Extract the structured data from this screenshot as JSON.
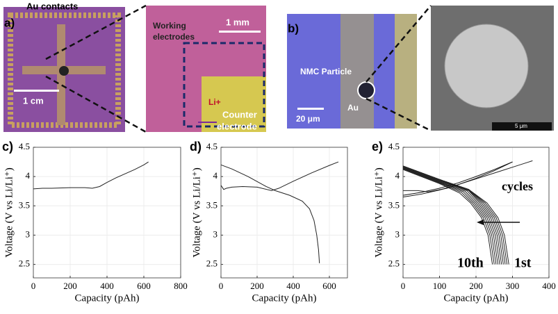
{
  "images": {
    "a": {
      "panel": "a)",
      "contacts": "Au contacts",
      "scale_left": "1 cm",
      "working": [
        "Working",
        "electrodes"
      ],
      "scale_right": "1 mm",
      "li": "Li+",
      "counter": [
        "Counter",
        "electrode"
      ]
    },
    "b": {
      "panel": "b)",
      "particle": "NMC Particle",
      "scale_left": "20 μm",
      "au": "Au",
      "scale_right": "5 μm"
    }
  },
  "chart_data": [
    {
      "type": "line",
      "panel": "c)",
      "x_label": "Capacity (pAh)",
      "y_label": "Voltage (V vs Li/Li⁺)",
      "xlim": [
        0,
        800
      ],
      "xticks": [
        0,
        200,
        400,
        600,
        800
      ],
      "ylim": [
        2.27,
        4.5
      ],
      "yticks": [
        2.5,
        3,
        3.5,
        4,
        4.5
      ],
      "grid": true,
      "series": [
        {
          "color": "#222",
          "x": [
            0,
            50,
            100,
            200,
            280,
            320,
            360,
            400,
            450,
            500,
            550,
            600,
            625
          ],
          "values": [
            3.79,
            3.8,
            3.8,
            3.81,
            3.81,
            3.8,
            3.83,
            3.9,
            3.98,
            4.05,
            4.12,
            4.2,
            4.25
          ]
        }
      ]
    },
    {
      "type": "line",
      "panel": "d)",
      "x_label": "Capacity (pAh)",
      "y_label": "Voltage (V vs Li/Li⁺)",
      "xlim": [
        0,
        700
      ],
      "xticks": [
        0,
        200,
        400,
        600
      ],
      "ylim": [
        2.27,
        4.5
      ],
      "yticks": [
        2.5,
        3,
        3.5,
        4,
        4.5
      ],
      "grid": true,
      "series": [
        {
          "color": "#222",
          "x": [
            0,
            15,
            30,
            60,
            120,
            200,
            280,
            320,
            400,
            500,
            600,
            650
          ],
          "values": [
            3.85,
            3.78,
            3.8,
            3.82,
            3.83,
            3.82,
            3.76,
            3.8,
            3.92,
            4.06,
            4.19,
            4.25
          ]
        },
        {
          "color": "#222",
          "x": [
            0,
            60,
            150,
            250,
            300,
            380,
            450,
            490,
            515,
            530,
            540,
            545
          ],
          "values": [
            4.2,
            4.13,
            4.0,
            3.83,
            3.76,
            3.68,
            3.58,
            3.45,
            3.25,
            3.0,
            2.75,
            2.52
          ]
        }
      ]
    },
    {
      "type": "line",
      "panel": "e)",
      "x_label": "Capacity (pAh)",
      "y_label": "Voltage (V vs Li/Li⁺)",
      "xlim": [
        0,
        400
      ],
      "xticks": [
        0,
        100,
        200,
        300,
        400
      ],
      "ylim": [
        2.27,
        4.5
      ],
      "yticks": [
        2.5,
        3,
        3.5,
        4,
        4.5
      ],
      "grid": true,
      "annotations": [
        "cycles",
        "10th",
        "1st"
      ],
      "series": [
        {
          "color": "#222",
          "x": [
            0,
            100,
            180,
            230,
            260,
            278,
            290
          ],
          "values": [
            4.18,
            3.95,
            3.78,
            3.55,
            3.3,
            3.0,
            2.5
          ]
        },
        {
          "color": "#222",
          "x": [
            0,
            100,
            180,
            225,
            255,
            273,
            285
          ],
          "values": [
            4.18,
            3.95,
            3.78,
            3.55,
            3.3,
            3.0,
            2.5
          ]
        },
        {
          "color": "#222",
          "x": [
            0,
            100,
            180,
            220,
            250,
            268,
            280
          ],
          "values": [
            4.18,
            3.95,
            3.78,
            3.55,
            3.3,
            3.0,
            2.5
          ]
        },
        {
          "color": "#222",
          "x": [
            0,
            100,
            180,
            215,
            245,
            263,
            275
          ],
          "values": [
            4.17,
            3.94,
            3.77,
            3.55,
            3.3,
            3.0,
            2.5
          ]
        },
        {
          "color": "#222",
          "x": [
            0,
            100,
            180,
            210,
            240,
            258,
            270
          ],
          "values": [
            4.16,
            3.93,
            3.76,
            3.55,
            3.3,
            3.0,
            2.5
          ]
        },
        {
          "color": "#222",
          "x": [
            0,
            100,
            175,
            205,
            235,
            253,
            265
          ],
          "values": [
            4.15,
            3.92,
            3.76,
            3.55,
            3.3,
            3.0,
            2.5
          ]
        },
        {
          "color": "#222",
          "x": [
            0,
            100,
            170,
            200,
            230,
            248,
            260
          ],
          "values": [
            4.15,
            3.91,
            3.75,
            3.55,
            3.3,
            3.0,
            2.5
          ]
        },
        {
          "color": "#222",
          "x": [
            0,
            100,
            165,
            195,
            225,
            243,
            255
          ],
          "values": [
            4.14,
            3.9,
            3.74,
            3.55,
            3.3,
            3.0,
            2.5
          ]
        },
        {
          "color": "#222",
          "x": [
            0,
            100,
            160,
            190,
            220,
            238,
            250
          ],
          "values": [
            4.13,
            3.89,
            3.73,
            3.55,
            3.3,
            3.0,
            2.5
          ]
        },
        {
          "color": "#222",
          "x": [
            0,
            100,
            155,
            185,
            215,
            233,
            245
          ],
          "values": [
            4.12,
            3.88,
            3.72,
            3.55,
            3.3,
            3.0,
            2.5
          ]
        },
        {
          "color": "#222",
          "x": [
            0,
            40,
            70,
            120,
            170,
            220,
            270,
            320,
            355
          ],
          "values": [
            3.76,
            3.76,
            3.74,
            3.8,
            3.9,
            4.0,
            4.1,
            4.2,
            4.27
          ]
        },
        {
          "color": "#111",
          "x": [
            0,
            50,
            100,
            150,
            200,
            250,
            300
          ],
          "values": [
            3.65,
            3.7,
            3.77,
            3.86,
            3.97,
            4.1,
            4.25
          ]
        },
        {
          "color": "#111",
          "x": [
            0,
            50,
            100,
            150,
            200,
            250,
            300
          ],
          "values": [
            3.68,
            3.73,
            3.8,
            3.89,
            4.0,
            4.12,
            4.25
          ]
        }
      ]
    }
  ]
}
